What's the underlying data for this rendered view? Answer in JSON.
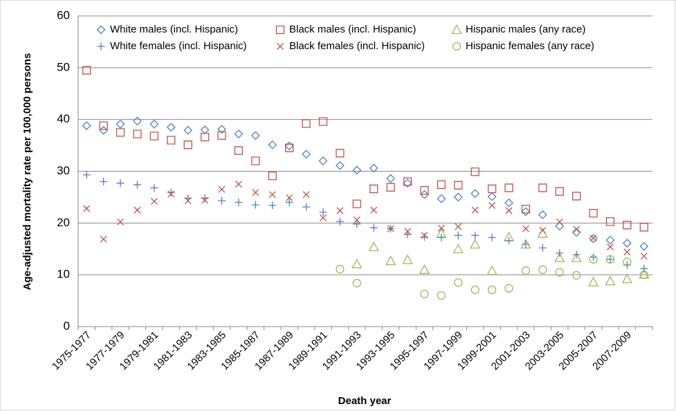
{
  "chart_data": {
    "type": "scatter",
    "y_label": "Age-adjusted mortality rate per 100,000 persons",
    "x_label": "Death year",
    "categories": [
      "1975-1977",
      null,
      "1977-1979",
      null,
      "1979-1981",
      null,
      "1981-1983",
      null,
      "1983-1985",
      null,
      "1985-1987",
      null,
      "1987-1989",
      null,
      "1989-1991",
      null,
      "1991-1993",
      null,
      "1993-1995",
      null,
      "1995-1997",
      null,
      "1997-1999",
      null,
      "1999-2001",
      null,
      "2001-2003",
      null,
      "2003-2005",
      null,
      "2005-2007",
      null,
      "2007-2009",
      null
    ],
    "ylim": [
      0,
      60
    ],
    "yticks": [
      0,
      10,
      20,
      30,
      40,
      50,
      60
    ],
    "grid": true,
    "legend": "top",
    "series": [
      {
        "name": "White males (incl. Hispanic)",
        "color": "#4f81bd",
        "marker": "diamond",
        "values": [
          38.8,
          37.9,
          39.1,
          39.7,
          39.1,
          38.5,
          37.9,
          38.0,
          38.1,
          37.2,
          36.9,
          35.1,
          34.9,
          33.3,
          32.0,
          31.1,
          30.2,
          30.6,
          28.6,
          27.7,
          25.5,
          24.7,
          25.0,
          25.7,
          25.1,
          23.9,
          22.2,
          21.6,
          19.4,
          18.2,
          17.0,
          16.7,
          16.1,
          15.5
        ]
      },
      {
        "name": "Black males (incl. Hispanic)",
        "color": "#c0504d",
        "marker": "square",
        "values": [
          49.5,
          38.8,
          37.5,
          37.2,
          36.8,
          36.0,
          35.1,
          36.6,
          36.9,
          34.0,
          32.0,
          29.1,
          34.5,
          39.2,
          39.6,
          33.5,
          23.7,
          26.6,
          26.9,
          28.0,
          26.3,
          27.4,
          27.3,
          29.9,
          26.6,
          26.8,
          22.7,
          26.8,
          26.1,
          25.2,
          21.9,
          20.3,
          19.6,
          19.2
        ]
      },
      {
        "name": "Hispanic males (any race)",
        "color": "#9bbb59",
        "marker": "triangle",
        "values": [
          null,
          null,
          null,
          null,
          null,
          null,
          null,
          null,
          null,
          null,
          null,
          null,
          null,
          null,
          null,
          null,
          12.1,
          15.4,
          12.7,
          12.9,
          11.0,
          18.0,
          15.0,
          15.9,
          10.8,
          17.3,
          15.9,
          18.0,
          13.3,
          13.3,
          8.6,
          8.8,
          9.2,
          10.1
        ]
      },
      {
        "name": "White females (incl. Hispanic)",
        "color": "#4f81bd",
        "marker": "plus",
        "values": [
          29.3,
          28.0,
          27.7,
          27.4,
          26.8,
          25.9,
          24.8,
          24.8,
          24.3,
          24.0,
          23.5,
          23.4,
          24.0,
          23.1,
          22.1,
          20.3,
          19.8,
          19.1,
          18.9,
          17.8,
          17.3,
          17.2,
          17.6,
          17.6,
          17.2,
          16.6,
          15.9,
          15.2,
          14.2,
          13.9,
          13.4,
          13.0,
          11.9,
          11.2
        ]
      },
      {
        "name": "Black females (incl. Hispanic)",
        "color": "#c0504d",
        "marker": "cross",
        "values": [
          22.8,
          16.9,
          20.2,
          22.5,
          24.2,
          25.6,
          24.3,
          24.4,
          26.5,
          27.5,
          25.9,
          25.5,
          24.9,
          25.5,
          21.0,
          22.4,
          20.6,
          22.5,
          18.9,
          18.4,
          17.6,
          19.0,
          19.3,
          22.5,
          23.4,
          22.4,
          18.9,
          18.6,
          20.2,
          18.8,
          17.1,
          15.4,
          14.4,
          13.6
        ]
      },
      {
        "name": "Hispanic females (any race)",
        "color": "#9bbb59",
        "marker": "circle",
        "values": [
          null,
          null,
          null,
          null,
          null,
          null,
          null,
          null,
          null,
          null,
          null,
          null,
          null,
          null,
          null,
          11.1,
          8.4,
          null,
          null,
          null,
          6.3,
          6.0,
          8.5,
          7.1,
          7.1,
          7.4,
          10.8,
          11.0,
          10.5,
          9.9,
          13.0,
          13.0,
          12.5,
          10.0
        ]
      }
    ]
  }
}
